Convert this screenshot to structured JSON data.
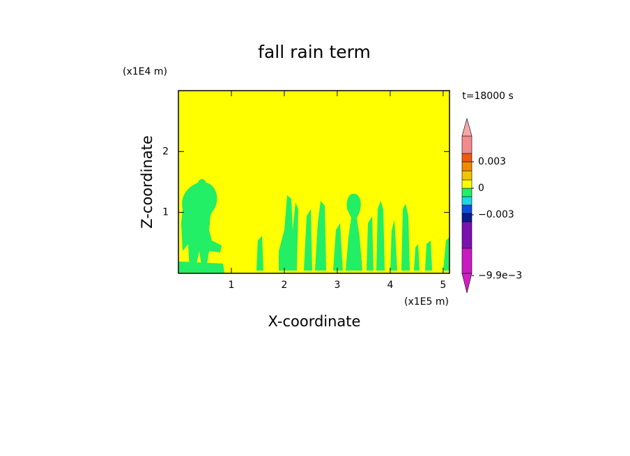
{
  "chart_data": {
    "type": "contour",
    "title": "fall rain term",
    "xlabel": "X-coordinate",
    "ylabel": "Z-coordinate",
    "x_unit": "(x1E5 m)",
    "y_unit": "(x1E4 m)",
    "time_label": "t=18000 s",
    "xlim": [
      0,
      5.12
    ],
    "ylim": [
      0,
      3
    ],
    "xticks": [
      1,
      2,
      3,
      4,
      5
    ],
    "yticks": [
      1,
      2
    ],
    "background_color": "#ffff00",
    "region_color": "#22ee66",
    "colorbar": {
      "colors": [
        "#d21ec8",
        "#c81cc0",
        "#7a12b0",
        "#0a1a90",
        "#0a4ee0",
        "#22d6e0",
        "#22ee66",
        "#ffff00",
        "#f0c400",
        "#f08a00",
        "#f05a10",
        "#f08c8c",
        "#f4a8a8"
      ],
      "ticks": [
        {
          "value": 0.003,
          "label": "0.003"
        },
        0,
        {
          "value": -0.003,
          "label": "−0.003"
        },
        {
          "value": -0.0099,
          "label": "−9.9e−3"
        }
      ]
    }
  }
}
